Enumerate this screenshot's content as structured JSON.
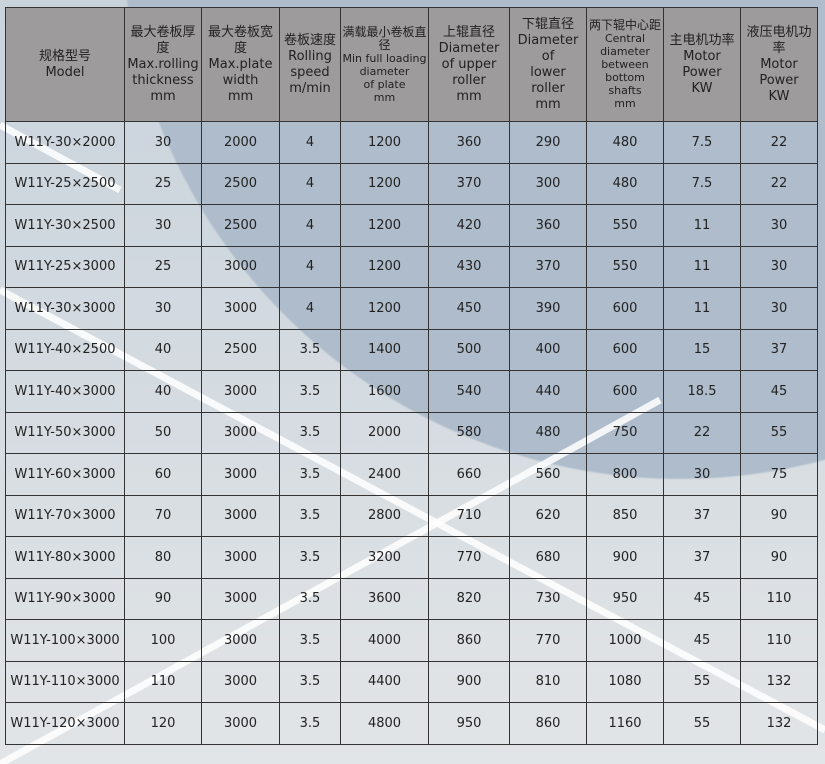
{
  "table": {
    "headers": [
      {
        "zh": "规格型号",
        "en": [
          "Model"
        ]
      },
      {
        "zh": "最大卷板厚度",
        "en": [
          "Max.rolling",
          "thickness",
          "mm"
        ]
      },
      {
        "zh": "最大卷板宽度",
        "en": [
          "Max.plate",
          "width",
          "mm"
        ]
      },
      {
        "zh": "卷板速度",
        "en": [
          "Rolling",
          "speed",
          "m/min"
        ]
      },
      {
        "zh": "满载最小卷板直径",
        "en": [
          "Min full loading",
          "diameter",
          "of plate",
          "mm"
        ]
      },
      {
        "zh": "上辊直径",
        "en": [
          "Diameter",
          "of upper",
          "roller",
          "mm"
        ]
      },
      {
        "zh": "下辊直径",
        "en": [
          "Diameter",
          "of",
          "lower",
          "roller",
          "mm"
        ]
      },
      {
        "zh": "两下辊中心距",
        "en": [
          "Central",
          "diameter",
          "between",
          "bottom shafts",
          "mm"
        ]
      },
      {
        "zh": "主电机功率",
        "en": [
          "Motor",
          "Power",
          "KW"
        ]
      },
      {
        "zh": "液压电机功率",
        "en": [
          "Motor",
          "Power",
          "KW"
        ]
      }
    ],
    "rows": [
      [
        "W11Y-30×2000",
        "30",
        "2000",
        "4",
        "1200",
        "360",
        "290",
        "480",
        "7.5",
        "22"
      ],
      [
        "W11Y-25×2500",
        "25",
        "2500",
        "4",
        "1200",
        "370",
        "300",
        "480",
        "7.5",
        "22"
      ],
      [
        "W11Y-30×2500",
        "30",
        "2500",
        "4",
        "1200",
        "420",
        "360",
        "550",
        "11",
        "30"
      ],
      [
        "W11Y-25×3000",
        "25",
        "3000",
        "4",
        "1200",
        "430",
        "370",
        "550",
        "11",
        "30"
      ],
      [
        "W11Y-30×3000",
        "30",
        "3000",
        "4",
        "1200",
        "450",
        "390",
        "600",
        "11",
        "30"
      ],
      [
        "W11Y-40×2500",
        "40",
        "2500",
        "3.5",
        "1400",
        "500",
        "400",
        "600",
        "15",
        "37"
      ],
      [
        "W11Y-40×3000",
        "40",
        "3000",
        "3.5",
        "1600",
        "540",
        "440",
        "600",
        "18.5",
        "45"
      ],
      [
        "W11Y-50×3000",
        "50",
        "3000",
        "3.5",
        "2000",
        "580",
        "480",
        "750",
        "22",
        "55"
      ],
      [
        "W11Y-60×3000",
        "60",
        "3000",
        "3.5",
        "2400",
        "660",
        "560",
        "800",
        "30",
        "75"
      ],
      [
        "W11Y-70×3000",
        "70",
        "3000",
        "3.5",
        "2800",
        "710",
        "620",
        "850",
        "37",
        "90"
      ],
      [
        "W11Y-80×3000",
        "80",
        "3000",
        "3.5",
        "3200",
        "770",
        "680",
        "900",
        "37",
        "90"
      ],
      [
        "W11Y-90×3000",
        "90",
        "3000",
        "3.5",
        "3600",
        "820",
        "730",
        "950",
        "45",
        "110"
      ],
      [
        "W11Y-100×3000",
        "100",
        "3000",
        "3.5",
        "4000",
        "860",
        "770",
        "1000",
        "45",
        "110"
      ],
      [
        "W11Y-110×3000",
        "110",
        "3000",
        "3.5",
        "4400",
        "900",
        "810",
        "1080",
        "55",
        "132"
      ],
      [
        "W11Y-120×3000",
        "120",
        "3000",
        "3.5",
        "4800",
        "950",
        "860",
        "1160",
        "55",
        "132"
      ]
    ]
  }
}
